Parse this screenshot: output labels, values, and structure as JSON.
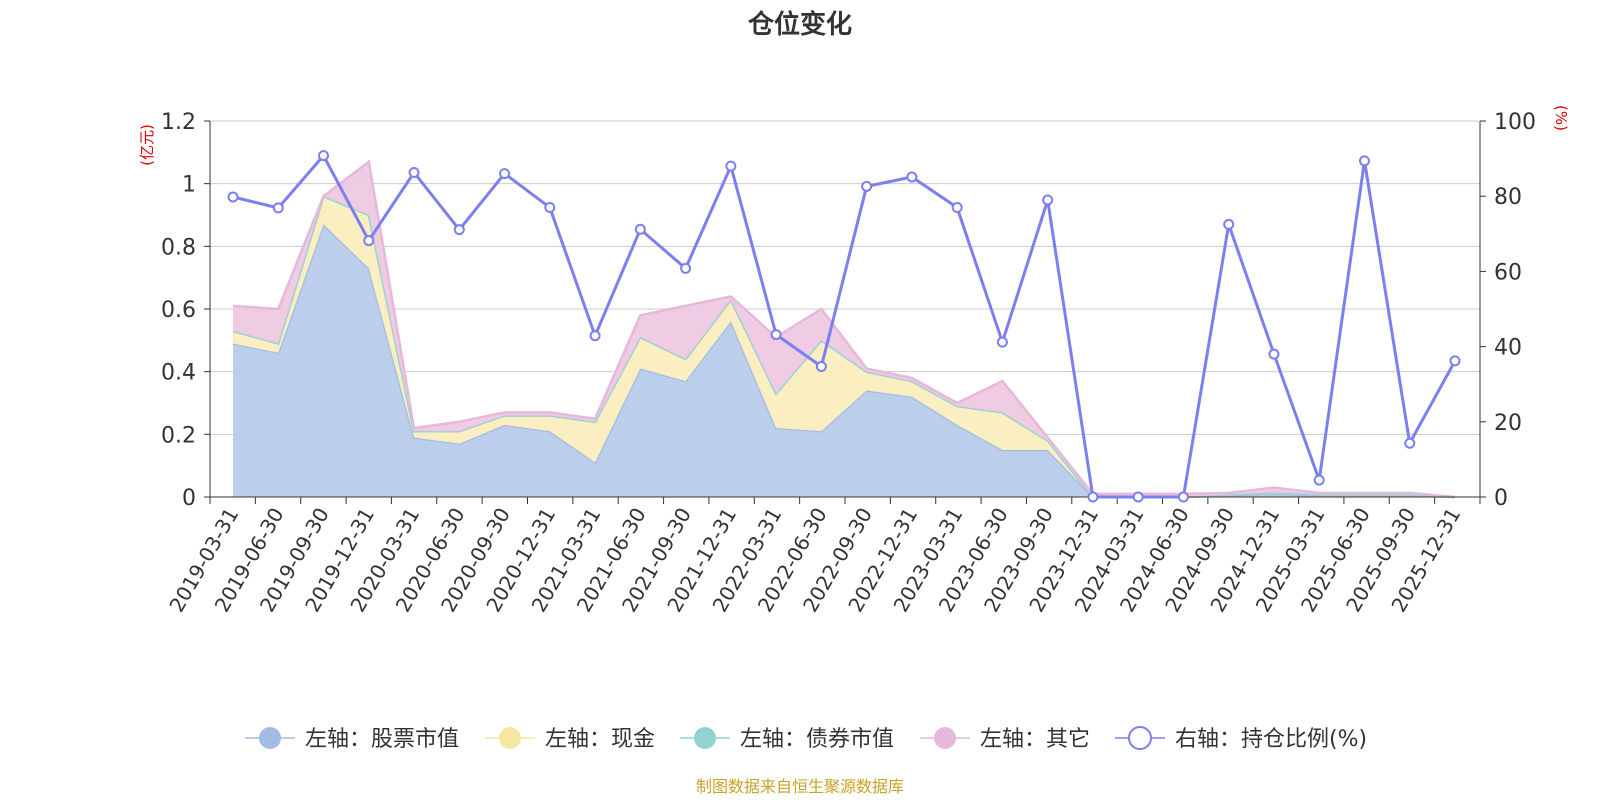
{
  "chart_data": {
    "type": "area",
    "title": "仓位变化",
    "left_unit": "(亿元)",
    "right_unit": "(%)",
    "categories": [
      "2019-03-31",
      "2019-06-30",
      "2019-09-30",
      "2019-12-31",
      "2020-03-31",
      "2020-06-30",
      "2020-09-30",
      "2020-12-31",
      "2021-03-31",
      "2021-06-30",
      "2021-09-30",
      "2021-12-31",
      "2022-03-31",
      "2022-06-30",
      "2022-09-30",
      "2022-12-31",
      "2023-03-31",
      "2023-06-30",
      "2023-09-30",
      "2023-12-31",
      "2024-03-31",
      "2024-06-30",
      "2024-09-30",
      "2024-12-31",
      "2025-03-31",
      "2025-06-30",
      "2025-09-30",
      "2025-12-31"
    ],
    "left_axis": {
      "min": 0,
      "max": 1.2,
      "ticks": [
        0,
        0.2,
        0.4,
        0.6,
        0.8,
        1,
        1.2
      ],
      "tick_labels": [
        "0",
        "0.2",
        "0.4",
        "0.6",
        "0.8",
        "1",
        "1.2"
      ]
    },
    "right_axis": {
      "min": 0,
      "max": 100,
      "ticks": [
        0,
        20,
        40,
        60,
        80,
        100
      ],
      "tick_labels": [
        "0",
        "20",
        "40",
        "60",
        "80",
        "100"
      ]
    },
    "stacked_series": [
      {
        "name": "左轴：股票市值",
        "color": "#a3bce3",
        "fill": "#b7cceb",
        "values": [
          0.49,
          0.46,
          0.87,
          0.73,
          0.19,
          0.17,
          0.23,
          0.21,
          0.11,
          0.41,
          0.37,
          0.56,
          0.22,
          0.21,
          0.34,
          0.32,
          0.23,
          0.15,
          0.15,
          0.0,
          0.0,
          0.0,
          0.005,
          0.01,
          0.005,
          0.005,
          0.005,
          0.0
        ]
      },
      {
        "name": "左轴：现金",
        "color": "#f5e6a0",
        "fill": "#fbeebf",
        "values": [
          0.04,
          0.03,
          0.09,
          0.17,
          0.02,
          0.04,
          0.03,
          0.05,
          0.13,
          0.1,
          0.07,
          0.07,
          0.11,
          0.29,
          0.06,
          0.05,
          0.06,
          0.12,
          0.03,
          0.0,
          0.0,
          0.0,
          0.003,
          0.005,
          0.003,
          0.003,
          0.003,
          0.0
        ]
      },
      {
        "name": "左轴：债券市值",
        "color": "#93d2d3",
        "fill": "#b2e0e0",
        "values": [
          0,
          0,
          0,
          0,
          0,
          0,
          0,
          0,
          0,
          0,
          0,
          0,
          0,
          0,
          0,
          0,
          0,
          0,
          0,
          0,
          0,
          0,
          0,
          0,
          0,
          0,
          0,
          0
        ]
      },
      {
        "name": "左轴：其它",
        "color": "#e6b8d9",
        "fill": "#eec9e3",
        "values": [
          0.08,
          0.11,
          0.0,
          0.17,
          0.01,
          0.03,
          0.01,
          0.01,
          0.01,
          0.07,
          0.17,
          0.01,
          0.18,
          0.1,
          0.01,
          0.01,
          0.01,
          0.1,
          0.01,
          0.01,
          0.01,
          0.01,
          0.005,
          0.015,
          0.005,
          0.005,
          0.005,
          0.0
        ]
      }
    ],
    "line_series": {
      "name": "右轴：持仓比例(%)",
      "color": "#7b7fef",
      "values": [
        79.8,
        76.9,
        90.8,
        68.2,
        86.3,
        71.1,
        86.0,
        77.0,
        42.9,
        71.2,
        60.8,
        88.0,
        43.2,
        34.7,
        82.6,
        85.1,
        77.0,
        41.2,
        79.0,
        0.0,
        0.0,
        0.0,
        72.5,
        38.0,
        4.5,
        89.4,
        14.3,
        36.2
      ]
    },
    "legend": [
      "左轴：股票市值",
      "左轴：现金",
      "左轴：债券市值",
      "左轴：其它",
      "右轴：持仓比例(%)"
    ],
    "source": "制图数据来自恒生聚源数据库"
  }
}
